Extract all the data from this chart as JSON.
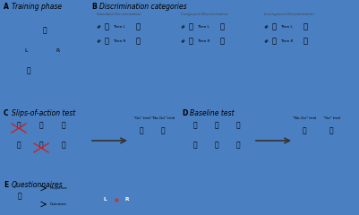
{
  "bg_color": "#e8e8e8",
  "panel_A_bg": "#f0eeeb",
  "panel_B_bg": "#f0eeeb",
  "panel_C_bg": "#f0eeeb",
  "panel_D_bg": "#f0eeeb",
  "panel_E_bg": "#f0eeeb",
  "panel_border": "#cccccc",
  "box_face": "#c8922a",
  "box_dark": "#9a6b1a",
  "box_mid": "#b07820",
  "title_fs": 5.5,
  "label_fs": 4.2,
  "small_fs": 3.5,
  "tiny_fs": 3.0,
  "panels": {
    "A": "Training phase",
    "B": "Discrimination categories",
    "C": "Slips-of-action test",
    "D": "Baseline test",
    "E": "Questionnaires"
  },
  "std_disc_title": "Standard Discrimination",
  "cong_disc_title": "Congruent Discrimination",
  "incong_disc_title": "Incongruent Discrimination",
  "then_L": "Then L",
  "then_R": "Then R",
  "go_trial": "\"Go\" trial",
  "nogo_trial": "\"No-Go\" trial",
  "response_label": "Response",
  "outcome_label": "Outcome",
  "L_btn": "L",
  "R_btn": "R",
  "btn_color": "#4a7fc1",
  "btn_dot_color": "#cc3333"
}
